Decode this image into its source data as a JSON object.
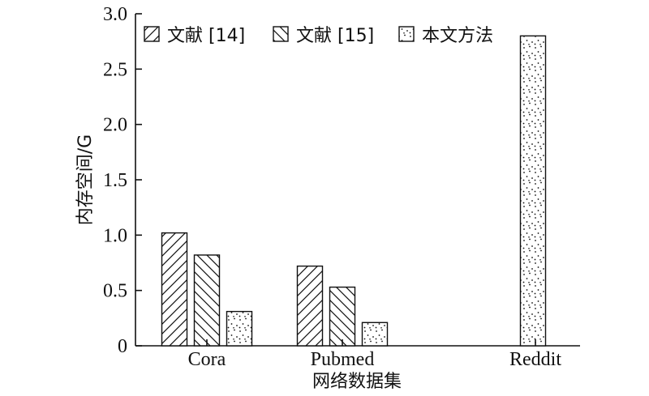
{
  "chart_data": {
    "type": "bar",
    "categories": [
      "Cora",
      "Pubmed",
      "Reddit"
    ],
    "series": [
      {
        "name": "文献 [14]",
        "values": [
          1.02,
          0.72,
          null
        ],
        "pattern": "diag-forward"
      },
      {
        "name": "文献 [15]",
        "values": [
          0.82,
          0.53,
          null
        ],
        "pattern": "diag-backward"
      },
      {
        "name": "本文方法",
        "values": [
          0.31,
          0.21,
          2.8
        ],
        "pattern": "dots"
      }
    ],
    "title": "",
    "xlabel": "网络数据集",
    "ylabel": "内存空间/G",
    "ylim": [
      0,
      3.0
    ],
    "yticks": [
      "0",
      "0.5",
      "1.0",
      "1.5",
      "2.0",
      "2.5",
      "3.0"
    ],
    "legend_position": "top",
    "grid": false
  }
}
